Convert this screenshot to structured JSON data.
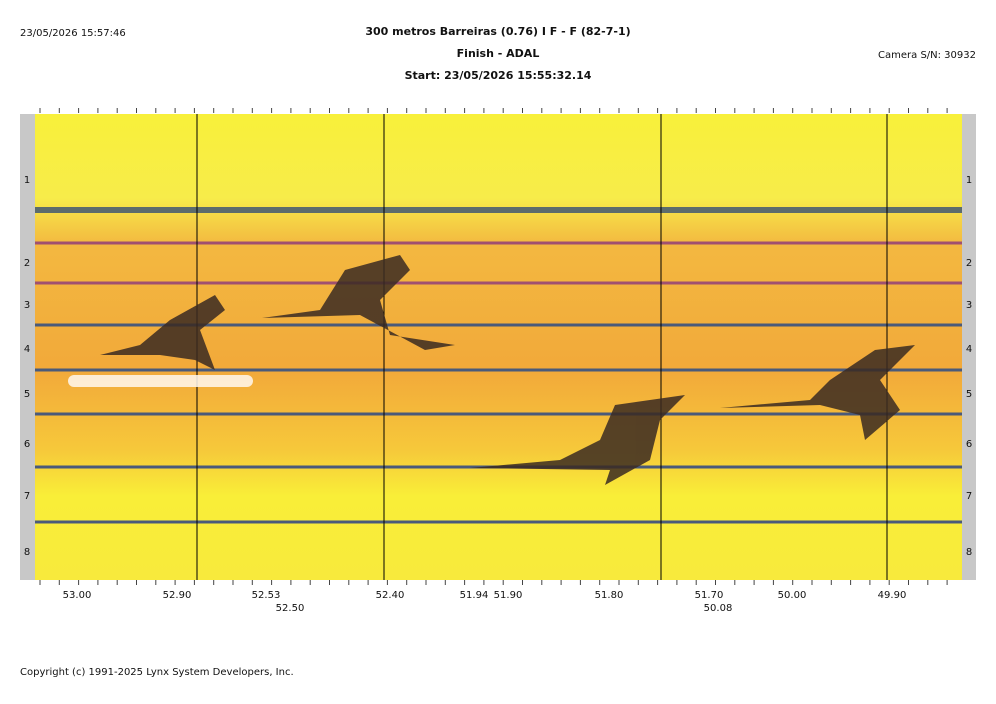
{
  "header": {
    "timestamp": "23/05/2026 15:57:46",
    "title_lines": [
      "300 metros Barreiras (0.76) I F - F (82-7-1)",
      "Finish - ADAL",
      "Start: 23/05/2026 15:55:32.14"
    ],
    "camera": "Camera S/N: 30932"
  },
  "lanes": [
    "1",
    "2",
    "3",
    "4",
    "5",
    "6",
    "7",
    "8"
  ],
  "time_labels": [
    "53.00",
    "52.90",
    "52.53",
    "52.50",
    "52.40",
    "51.94",
    "51.90",
    "51.80",
    "51.70",
    "50.08",
    "50.00",
    "49.90"
  ],
  "footer": "Copyright (c) 1991-2025 Lynx System Developers, Inc."
}
